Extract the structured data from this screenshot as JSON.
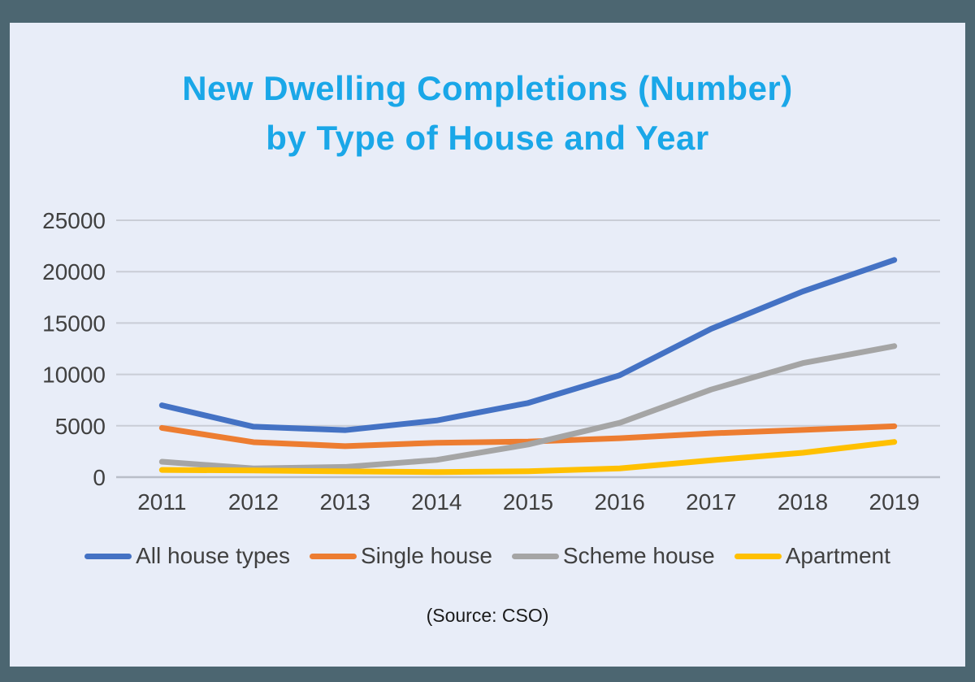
{
  "title": {
    "line1": "New Dwelling Completions (Number)",
    "line2": "by Type of House and Year"
  },
  "source_note": "(Source: CSO)",
  "colors": {
    "frame": "#4C6671",
    "background": "#E8EDF8",
    "title": "#1AA7E8",
    "axis_text": "#404040",
    "gridline": "#C9CDD6",
    "zero_line": "#B9BEC8",
    "source_text": "#1A1A1A"
  },
  "chart_data": {
    "type": "line",
    "title": "New Dwelling Completions (Number) by Type of House and Year",
    "categories": [
      "2011",
      "2012",
      "2013",
      "2014",
      "2015",
      "2016",
      "2017",
      "2018",
      "2019"
    ],
    "series": [
      {
        "name": "All house types",
        "color": "#4472C4",
        "values": [
          6994,
          4911,
          4575,
          5518,
          7219,
          9915,
          14435,
          18072,
          21138
        ]
      },
      {
        "name": "Single house",
        "color": "#ED7D31",
        "values": [
          4792,
          3406,
          3020,
          3347,
          3463,
          3784,
          4264,
          4600,
          4956
        ]
      },
      {
        "name": "Scheme house",
        "color": "#A5A5A5",
        "values": [
          1500,
          853,
          994,
          1676,
          3181,
          5284,
          8529,
          11097,
          12755
        ]
      },
      {
        "name": "Apartment",
        "color": "#FFC000",
        "values": [
          702,
          652,
          561,
          495,
          575,
          847,
          1642,
          2375,
          3427
        ]
      }
    ],
    "xlabel": "",
    "ylabel": "",
    "ylim": [
      0,
      25000
    ],
    "yticks": [
      0,
      5000,
      10000,
      15000,
      20000,
      25000
    ],
    "grid": true,
    "legend_position": "bottom",
    "line_width": 7
  }
}
